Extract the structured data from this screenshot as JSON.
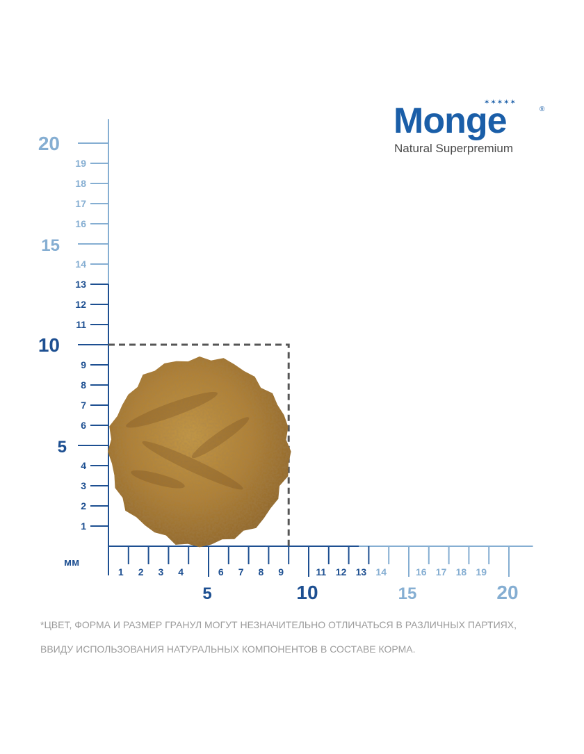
{
  "brand": {
    "name": "Monge",
    "tagline": "Natural Superpremium",
    "stars": "✶✶✶✶✶",
    "registered": "®"
  },
  "ruler": {
    "unit": "мм",
    "y_ticks": [
      1,
      2,
      3,
      4,
      5,
      6,
      7,
      8,
      9,
      10,
      11,
      12,
      13,
      14,
      15,
      16,
      17,
      18,
      19,
      20
    ],
    "x_ticks": [
      1,
      2,
      3,
      4,
      5,
      6,
      7,
      8,
      9,
      10,
      11,
      12,
      13,
      14,
      15,
      16,
      17,
      18,
      19,
      20
    ],
    "major_labels": [
      5,
      10,
      15,
      20
    ],
    "minor_labels_y_hidden": [
      5,
      10,
      15,
      20
    ],
    "minor_labels_x_hidden": [
      5,
      10,
      15,
      20
    ],
    "dark_range_max": 13,
    "dark_color": "#1d4f91",
    "light_color": "#85aed2",
    "dash_color": "#555555"
  },
  "product": {
    "kibble_size_mm": {
      "width": 9,
      "height": 9.3
    },
    "kibble_color": "#b6842f"
  },
  "disclaimer": {
    "line1": "*ЦВЕТ, ФОРМА И РАЗМЕР ГРАНУЛ МОГУТ НЕЗНАЧИТЕЛЬНО ОТЛИЧАТЬСЯ В РАЗЛИЧНЫХ ПАРТИЯХ,",
    "line2": "ВВИДУ ИСПОЛЬЗОВАНИЯ НАТУРАЛЬНЫХ КОМПОНЕНТОВ В СОСТАВЕ КОРМА."
  }
}
